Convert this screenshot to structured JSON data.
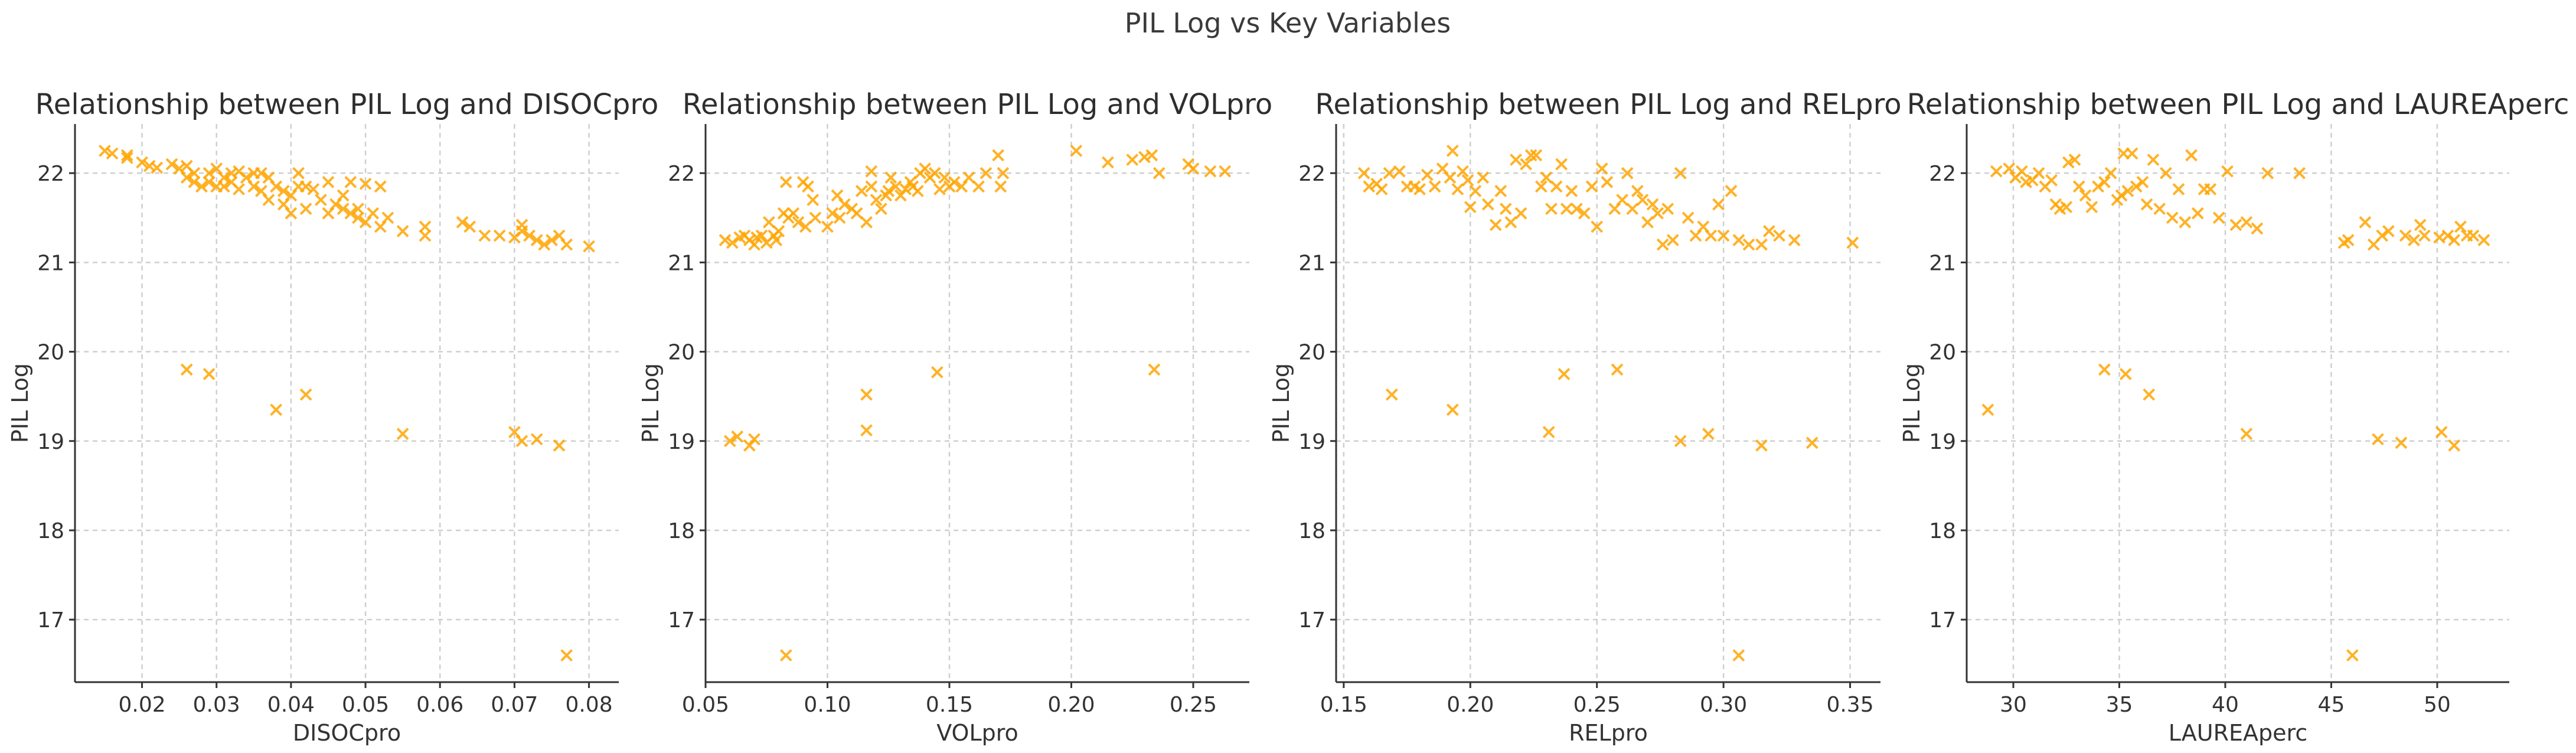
{
  "figure": {
    "suptitle": "PIL Log vs Key Variables",
    "marker": "x",
    "marker_color": "#FFA500",
    "grid_color": "#cfcfcf"
  },
  "chart_data": [
    {
      "type": "scatter",
      "title": "Relationship between PIL Log and DISOCpro",
      "xlabel": "DISOCpro",
      "ylabel": "PIL Log",
      "xlim": [
        0.011,
        0.084
      ],
      "ylim": [
        16.3,
        22.55
      ],
      "xticks": [
        0.02,
        0.03,
        0.04,
        0.05,
        0.06,
        0.07,
        0.08
      ],
      "xtick_labels": [
        "0.02",
        "0.03",
        "0.04",
        "0.05",
        "0.06",
        "0.07",
        "0.08"
      ],
      "yticks": [
        17,
        18,
        19,
        20,
        21,
        22
      ],
      "ytick_labels": [
        "17",
        "18",
        "19",
        "20",
        "21",
        "22"
      ],
      "points": [
        [
          0.015,
          22.25
        ],
        [
          0.016,
          22.22
        ],
        [
          0.018,
          22.17
        ],
        [
          0.018,
          22.2
        ],
        [
          0.02,
          22.12
        ],
        [
          0.021,
          22.08
        ],
        [
          0.022,
          22.06
        ],
        [
          0.024,
          22.1
        ],
        [
          0.025,
          22.05
        ],
        [
          0.026,
          21.95
        ],
        [
          0.026,
          22.08
        ],
        [
          0.027,
          21.9
        ],
        [
          0.027,
          22.0
        ],
        [
          0.028,
          21.85
        ],
        [
          0.029,
          22.0
        ],
        [
          0.029,
          21.9
        ],
        [
          0.03,
          21.85
        ],
        [
          0.03,
          22.05
        ],
        [
          0.031,
          21.95
        ],
        [
          0.031,
          21.85
        ],
        [
          0.032,
          22.0
        ],
        [
          0.032,
          21.9
        ],
        [
          0.033,
          22.02
        ],
        [
          0.033,
          21.82
        ],
        [
          0.034,
          21.95
        ],
        [
          0.035,
          21.85
        ],
        [
          0.035,
          22.0
        ],
        [
          0.036,
          21.8
        ],
        [
          0.036,
          22.0
        ],
        [
          0.037,
          21.95
        ],
        [
          0.037,
          21.7
        ],
        [
          0.038,
          21.85
        ],
        [
          0.039,
          21.8
        ],
        [
          0.039,
          21.65
        ],
        [
          0.04,
          21.75
        ],
        [
          0.04,
          21.55
        ],
        [
          0.041,
          22.0
        ],
        [
          0.041,
          21.85
        ],
        [
          0.042,
          21.6
        ],
        [
          0.042,
          21.85
        ],
        [
          0.043,
          21.82
        ],
        [
          0.044,
          21.7
        ],
        [
          0.045,
          21.55
        ],
        [
          0.045,
          21.9
        ],
        [
          0.046,
          21.65
        ],
        [
          0.047,
          21.6
        ],
        [
          0.047,
          21.75
        ],
        [
          0.048,
          21.55
        ],
        [
          0.048,
          21.9
        ],
        [
          0.049,
          21.5
        ],
        [
          0.049,
          21.6
        ],
        [
          0.05,
          21.45
        ],
        [
          0.05,
          21.88
        ],
        [
          0.051,
          21.55
        ],
        [
          0.052,
          21.4
        ],
        [
          0.052,
          21.85
        ],
        [
          0.053,
          21.5
        ],
        [
          0.055,
          21.35
        ],
        [
          0.058,
          21.4
        ],
        [
          0.058,
          21.3
        ],
        [
          0.063,
          21.45
        ],
        [
          0.064,
          21.4
        ],
        [
          0.066,
          21.3
        ],
        [
          0.068,
          21.3
        ],
        [
          0.07,
          21.28
        ],
        [
          0.071,
          21.35
        ],
        [
          0.071,
          21.42
        ],
        [
          0.072,
          21.3
        ],
        [
          0.073,
          21.25
        ],
        [
          0.074,
          21.2
        ],
        [
          0.075,
          21.25
        ],
        [
          0.076,
          21.3
        ],
        [
          0.077,
          21.2
        ],
        [
          0.08,
          21.18
        ],
        [
          0.026,
          19.8
        ],
        [
          0.029,
          19.75
        ],
        [
          0.038,
          19.35
        ],
        [
          0.042,
          19.52
        ],
        [
          0.055,
          19.08
        ],
        [
          0.07,
          19.1
        ],
        [
          0.071,
          19.0
        ],
        [
          0.073,
          19.02
        ],
        [
          0.076,
          18.95
        ],
        [
          0.077,
          16.6
        ]
      ]
    },
    {
      "type": "scatter",
      "title": "Relationship between PIL Log and VOLpro",
      "xlabel": "VOLpro",
      "ylabel": "PIL Log",
      "xlim": [
        0.05,
        0.273
      ],
      "ylim": [
        16.3,
        22.55
      ],
      "xticks": [
        0.05,
        0.1,
        0.15,
        0.2,
        0.25
      ],
      "xtick_labels": [
        "0.05",
        "0.10",
        "0.15",
        "0.20",
        "0.25"
      ],
      "yticks": [
        17,
        18,
        19,
        20,
        21,
        22
      ],
      "ytick_labels": [
        "17",
        "18",
        "19",
        "20",
        "21",
        "22"
      ],
      "points": [
        [
          0.058,
          21.25
        ],
        [
          0.061,
          21.22
        ],
        [
          0.064,
          21.28
        ],
        [
          0.066,
          21.3
        ],
        [
          0.068,
          21.25
        ],
        [
          0.07,
          21.2
        ],
        [
          0.071,
          21.28
        ],
        [
          0.073,
          21.3
        ],
        [
          0.075,
          21.22
        ],
        [
          0.076,
          21.45
        ],
        [
          0.078,
          21.3
        ],
        [
          0.079,
          21.25
        ],
        [
          0.08,
          21.35
        ],
        [
          0.082,
          21.55
        ],
        [
          0.083,
          21.9
        ],
        [
          0.084,
          21.5
        ],
        [
          0.086,
          21.55
        ],
        [
          0.088,
          21.45
        ],
        [
          0.09,
          21.9
        ],
        [
          0.091,
          21.4
        ],
        [
          0.092,
          21.85
        ],
        [
          0.094,
          21.7
        ],
        [
          0.095,
          21.5
        ],
        [
          0.1,
          21.4
        ],
        [
          0.102,
          21.55
        ],
        [
          0.104,
          21.75
        ],
        [
          0.105,
          21.5
        ],
        [
          0.107,
          21.65
        ],
        [
          0.11,
          21.6
        ],
        [
          0.112,
          21.55
        ],
        [
          0.114,
          21.8
        ],
        [
          0.116,
          21.45
        ],
        [
          0.118,
          21.85
        ],
        [
          0.118,
          22.02
        ],
        [
          0.12,
          21.7
        ],
        [
          0.122,
          21.6
        ],
        [
          0.124,
          21.75
        ],
        [
          0.125,
          21.8
        ],
        [
          0.126,
          21.95
        ],
        [
          0.128,
          21.85
        ],
        [
          0.13,
          21.75
        ],
        [
          0.132,
          21.82
        ],
        [
          0.134,
          21.9
        ],
        [
          0.135,
          21.85
        ],
        [
          0.137,
          21.8
        ],
        [
          0.138,
          22.0
        ],
        [
          0.14,
          22.05
        ],
        [
          0.142,
          21.95
        ],
        [
          0.144,
          22.0
        ],
        [
          0.146,
          21.82
        ],
        [
          0.148,
          21.95
        ],
        [
          0.15,
          21.85
        ],
        [
          0.152,
          21.9
        ],
        [
          0.155,
          21.85
        ],
        [
          0.158,
          21.95
        ],
        [
          0.162,
          21.85
        ],
        [
          0.165,
          22.0
        ],
        [
          0.17,
          22.2
        ],
        [
          0.171,
          21.85
        ],
        [
          0.172,
          22.0
        ],
        [
          0.202,
          22.25
        ],
        [
          0.215,
          22.12
        ],
        [
          0.225,
          22.15
        ],
        [
          0.23,
          22.18
        ],
        [
          0.233,
          22.2
        ],
        [
          0.236,
          22.0
        ],
        [
          0.248,
          22.1
        ],
        [
          0.25,
          22.05
        ],
        [
          0.257,
          22.02
        ],
        [
          0.263,
          22.02
        ],
        [
          0.06,
          19.0
        ],
        [
          0.063,
          19.05
        ],
        [
          0.068,
          18.95
        ],
        [
          0.07,
          19.02
        ],
        [
          0.083,
          16.6
        ],
        [
          0.116,
          19.52
        ],
        [
          0.116,
          19.12
        ],
        [
          0.145,
          19.77
        ],
        [
          0.234,
          19.8
        ]
      ]
    },
    {
      "type": "scatter",
      "title": "Relationship between PIL Log and RELpro",
      "xlabel": "RELpro",
      "ylabel": "PIL Log",
      "xlim": [
        0.147,
        0.362
      ],
      "ylim": [
        16.3,
        22.55
      ],
      "xticks": [
        0.15,
        0.2,
        0.25,
        0.3,
        0.35
      ],
      "xtick_labels": [
        "0.15",
        "0.20",
        "0.25",
        "0.30",
        "0.35"
      ],
      "yticks": [
        17,
        18,
        19,
        20,
        21,
        22
      ],
      "ytick_labels": [
        "17",
        "18",
        "19",
        "20",
        "21",
        "22"
      ],
      "points": [
        [
          0.158,
          22.0
        ],
        [
          0.16,
          21.85
        ],
        [
          0.163,
          21.88
        ],
        [
          0.165,
          21.82
        ],
        [
          0.168,
          22.0
        ],
        [
          0.172,
          22.02
        ],
        [
          0.175,
          21.85
        ],
        [
          0.178,
          21.85
        ],
        [
          0.18,
          21.82
        ],
        [
          0.183,
          21.98
        ],
        [
          0.186,
          21.85
        ],
        [
          0.189,
          22.05
        ],
        [
          0.192,
          21.95
        ],
        [
          0.193,
          22.25
        ],
        [
          0.195,
          21.82
        ],
        [
          0.197,
          22.02
        ],
        [
          0.199,
          21.92
        ],
        [
          0.2,
          21.62
        ],
        [
          0.202,
          21.8
        ],
        [
          0.205,
          21.95
        ],
        [
          0.207,
          21.65
        ],
        [
          0.21,
          21.42
        ],
        [
          0.212,
          21.8
        ],
        [
          0.214,
          21.6
        ],
        [
          0.216,
          21.45
        ],
        [
          0.218,
          22.15
        ],
        [
          0.22,
          21.55
        ],
        [
          0.222,
          22.1
        ],
        [
          0.224,
          22.2
        ],
        [
          0.226,
          22.2
        ],
        [
          0.228,
          21.85
        ],
        [
          0.23,
          21.95
        ],
        [
          0.232,
          21.6
        ],
        [
          0.234,
          21.85
        ],
        [
          0.236,
          22.1
        ],
        [
          0.238,
          21.6
        ],
        [
          0.24,
          21.8
        ],
        [
          0.242,
          21.6
        ],
        [
          0.245,
          21.55
        ],
        [
          0.248,
          21.85
        ],
        [
          0.25,
          21.4
        ],
        [
          0.252,
          22.05
        ],
        [
          0.254,
          21.9
        ],
        [
          0.257,
          21.6
        ],
        [
          0.26,
          21.7
        ],
        [
          0.262,
          22.0
        ],
        [
          0.264,
          21.6
        ],
        [
          0.266,
          21.8
        ],
        [
          0.268,
          21.7
        ],
        [
          0.27,
          21.45
        ],
        [
          0.272,
          21.65
        ],
        [
          0.274,
          21.55
        ],
        [
          0.276,
          21.2
        ],
        [
          0.278,
          21.6
        ],
        [
          0.28,
          21.25
        ],
        [
          0.283,
          22.0
        ],
        [
          0.286,
          21.5
        ],
        [
          0.289,
          21.3
        ],
        [
          0.292,
          21.4
        ],
        [
          0.295,
          21.3
        ],
        [
          0.298,
          21.65
        ],
        [
          0.3,
          21.3
        ],
        [
          0.303,
          21.8
        ],
        [
          0.306,
          21.25
        ],
        [
          0.31,
          21.2
        ],
        [
          0.315,
          21.2
        ],
        [
          0.318,
          21.35
        ],
        [
          0.322,
          21.3
        ],
        [
          0.328,
          21.25
        ],
        [
          0.351,
          21.22
        ],
        [
          0.169,
          19.52
        ],
        [
          0.193,
          19.35
        ],
        [
          0.231,
          19.1
        ],
        [
          0.237,
          19.75
        ],
        [
          0.258,
          19.8
        ],
        [
          0.283,
          19.0
        ],
        [
          0.294,
          19.08
        ],
        [
          0.306,
          16.6
        ],
        [
          0.315,
          18.95
        ],
        [
          0.335,
          18.98
        ]
      ]
    },
    {
      "type": "scatter",
      "title": "Relationship between PIL Log and LAUREAperc",
      "xlabel": "LAUREAperc",
      "ylabel": "PIL Log",
      "xlim": [
        27.8,
        53.4
      ],
      "ylim": [
        16.3,
        22.55
      ],
      "xticks": [
        30,
        35,
        40,
        45,
        50
      ],
      "xtick_labels": [
        "30",
        "35",
        "40",
        "45",
        "50"
      ],
      "yticks": [
        17,
        18,
        19,
        20,
        21,
        22
      ],
      "ytick_labels": [
        "17",
        "18",
        "19",
        "20",
        "21",
        "22"
      ],
      "points": [
        [
          29.2,
          22.02
        ],
        [
          29.8,
          22.05
        ],
        [
          30.1,
          21.95
        ],
        [
          30.4,
          22.02
        ],
        [
          30.6,
          21.9
        ],
        [
          30.9,
          21.92
        ],
        [
          31.2,
          22.0
        ],
        [
          31.5,
          21.85
        ],
        [
          31.8,
          21.92
        ],
        [
          32.0,
          21.65
        ],
        [
          32.2,
          21.6
        ],
        [
          32.5,
          21.62
        ],
        [
          32.6,
          22.12
        ],
        [
          32.9,
          22.15
        ],
        [
          33.1,
          21.85
        ],
        [
          33.4,
          21.75
        ],
        [
          33.7,
          21.62
        ],
        [
          34.0,
          21.85
        ],
        [
          34.3,
          21.9
        ],
        [
          34.6,
          22.0
        ],
        [
          34.9,
          21.7
        ],
        [
          35.1,
          21.75
        ],
        [
          35.2,
          22.22
        ],
        [
          35.4,
          21.8
        ],
        [
          35.6,
          22.22
        ],
        [
          35.8,
          21.85
        ],
        [
          36.1,
          21.9
        ],
        [
          36.3,
          21.65
        ],
        [
          36.6,
          22.15
        ],
        [
          36.9,
          21.6
        ],
        [
          37.2,
          22.0
        ],
        [
          37.5,
          21.5
        ],
        [
          37.8,
          21.82
        ],
        [
          38.1,
          21.45
        ],
        [
          38.4,
          22.2
        ],
        [
          38.7,
          21.55
        ],
        [
          39.0,
          21.82
        ],
        [
          39.3,
          21.82
        ],
        [
          39.7,
          21.5
        ],
        [
          40.1,
          22.02
        ],
        [
          40.5,
          21.42
        ],
        [
          41.0,
          21.45
        ],
        [
          41.5,
          21.38
        ],
        [
          42.0,
          22.0
        ],
        [
          43.5,
          22.0
        ],
        [
          45.6,
          21.22
        ],
        [
          45.8,
          21.25
        ],
        [
          46.6,
          21.45
        ],
        [
          47.0,
          21.2
        ],
        [
          47.4,
          21.3
        ],
        [
          47.7,
          21.35
        ],
        [
          48.5,
          21.3
        ],
        [
          48.9,
          21.25
        ],
        [
          49.2,
          21.42
        ],
        [
          49.4,
          21.3
        ],
        [
          50.1,
          21.28
        ],
        [
          50.5,
          21.3
        ],
        [
          50.8,
          21.25
        ],
        [
          51.1,
          21.4
        ],
        [
          51.4,
          21.3
        ],
        [
          51.7,
          21.3
        ],
        [
          52.2,
          21.25
        ],
        [
          28.8,
          19.35
        ],
        [
          34.3,
          19.8
        ],
        [
          35.3,
          19.75
        ],
        [
          36.4,
          19.52
        ],
        [
          41.0,
          19.08
        ],
        [
          46.0,
          16.6
        ],
        [
          47.2,
          19.02
        ],
        [
          48.3,
          18.98
        ],
        [
          50.2,
          19.1
        ],
        [
          50.8,
          18.95
        ]
      ]
    }
  ]
}
